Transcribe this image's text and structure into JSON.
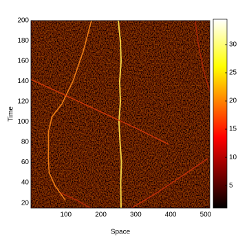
{
  "chart_data": {
    "type": "heatmap",
    "xlabel": "Space",
    "ylabel": "Time",
    "xlim": [
      0,
      512
    ],
    "xticks": [
      100,
      200,
      300,
      400,
      500
    ],
    "ylim": [
      15,
      200
    ],
    "yticks": [
      20,
      40,
      60,
      80,
      100,
      120,
      140,
      160,
      180,
      200
    ],
    "colormap": "hot",
    "series": [
      {
        "color": "#ffe14a",
        "x": [
          258,
          257,
          259,
          255,
          252,
          256,
          254,
          258,
          256,
          250
        ],
        "values": [
          15,
          40,
          60,
          80,
          100,
          120,
          140,
          160,
          180,
          200
        ]
      },
      {
        "color": "#ff8a1a",
        "x": [
          98,
          69,
          52,
          50,
          50,
          60,
          89,
          120,
          150,
          173
        ],
        "values": [
          23,
          37,
          50,
          63,
          90,
          105,
          118,
          140,
          170,
          200
        ]
      },
      {
        "color": "#d63a0a",
        "x": [
          0,
          100,
          200,
          300,
          394
        ],
        "values": [
          142,
          126,
          110,
          94,
          78
        ]
      },
      {
        "color": "#c8300a",
        "x": [
          288,
          360,
          430,
          507
        ],
        "values": [
          15,
          30,
          46,
          64
        ]
      },
      {
        "color": "#b82a08",
        "x": [
          85,
          130,
          170
        ],
        "values": [
          30,
          23,
          15
        ]
      },
      {
        "color": "#b02808",
        "x": [
          470,
          480,
          495,
          512
        ],
        "values": [
          200,
          175,
          150,
          130
        ]
      }
    ],
    "colorbar": {
      "lim": [
        1,
        34.5
      ],
      "ticks": [
        5,
        10,
        15,
        20,
        25,
        30
      ]
    }
  }
}
